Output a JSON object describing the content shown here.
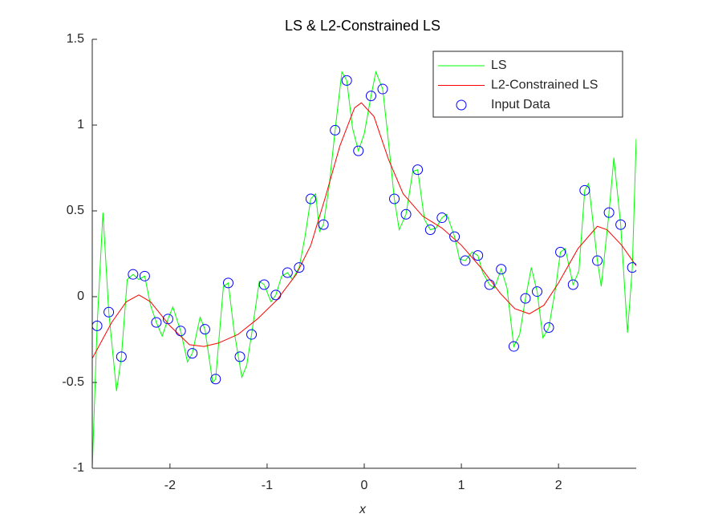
{
  "chart_data": {
    "type": "line",
    "title": "LS & L2-Constrained LS",
    "x_label": "x",
    "xlim": [
      -2.8,
      2.8
    ],
    "ylim": [
      -1,
      1.5
    ],
    "xticks": [
      -2,
      -1,
      0,
      1,
      2
    ],
    "yticks": [
      -1,
      -0.5,
      0,
      0.5,
      1,
      1.5
    ],
    "grid": false,
    "legend_position": "upper right",
    "series": [
      {
        "name": "LS",
        "type": "line",
        "color": "#00ff00",
        "x": [
          -2.8,
          -2.75,
          -2.69,
          -2.63,
          -2.55,
          -2.5,
          -2.44,
          -2.38,
          -2.32,
          -2.26,
          -2.2,
          -2.14,
          -2.08,
          -2.02,
          -1.97,
          -1.89,
          -1.82,
          -1.77,
          -1.69,
          -1.64,
          -1.56,
          -1.53,
          -1.45,
          -1.4,
          -1.34,
          -1.26,
          -1.21,
          -1.16,
          -1.08,
          -1.03,
          -0.96,
          -0.91,
          -0.85,
          -0.79,
          -0.74,
          -0.67,
          -0.61,
          -0.55,
          -0.5,
          -0.46,
          -0.42,
          -0.36,
          -0.3,
          -0.23,
          -0.18,
          -0.12,
          -0.06,
          0,
          0.07,
          0.12,
          0.19,
          0.25,
          0.31,
          0.36,
          0.43,
          0.5,
          0.55,
          0.62,
          0.68,
          0.74,
          0.8,
          0.85,
          0.93,
          0.98,
          1.04,
          1.11,
          1.17,
          1.22,
          1.29,
          1.34,
          1.41,
          1.47,
          1.54,
          1.6,
          1.66,
          1.72,
          1.78,
          1.84,
          1.9,
          1.97,
          2.02,
          2.07,
          2.15,
          2.21,
          2.27,
          2.31,
          2.4,
          2.44,
          2.52,
          2.57,
          2.64,
          2.71,
          2.76,
          2.8
        ],
        "values": [
          -1.0,
          -0.17,
          0.49,
          -0.09,
          -0.55,
          -0.35,
          0.1,
          0.13,
          0.1,
          0.12,
          -0.05,
          -0.15,
          -0.23,
          -0.13,
          -0.06,
          -0.2,
          -0.38,
          -0.33,
          -0.12,
          -0.19,
          -0.5,
          -0.48,
          0.06,
          0.08,
          -0.2,
          -0.47,
          -0.4,
          -0.22,
          0.09,
          0.07,
          -0.03,
          0.01,
          0.12,
          0.14,
          0.1,
          0.17,
          0.35,
          0.57,
          0.6,
          0.38,
          0.42,
          0.65,
          0.97,
          1.31,
          1.26,
          0.98,
          0.85,
          0.95,
          1.17,
          1.31,
          1.21,
          0.9,
          0.57,
          0.39,
          0.48,
          0.73,
          0.74,
          0.45,
          0.39,
          0.4,
          0.46,
          0.48,
          0.35,
          0.22,
          0.21,
          0.26,
          0.24,
          0.14,
          0.07,
          0.05,
          0.16,
          0.05,
          -0.29,
          -0.22,
          -0.01,
          0.17,
          0.03,
          -0.24,
          -0.18,
          0.05,
          0.26,
          0.28,
          0.07,
          0.15,
          0.62,
          0.66,
          0.21,
          0.06,
          0.49,
          0.81,
          0.42,
          -0.21,
          0.17,
          0.92
        ]
      },
      {
        "name": "L2-Constrained LS",
        "type": "line",
        "color": "#ff0000",
        "x": [
          -2.8,
          -2.6,
          -2.45,
          -2.32,
          -2.2,
          -2.0,
          -1.8,
          -1.65,
          -1.5,
          -1.3,
          -1.1,
          -0.9,
          -0.7,
          -0.55,
          -0.4,
          -0.25,
          -0.1,
          -0.03,
          0.1,
          0.25,
          0.4,
          0.6,
          0.8,
          1.0,
          1.2,
          1.4,
          1.55,
          1.7,
          1.85,
          2.0,
          2.2,
          2.4,
          2.5,
          2.65,
          2.8
        ],
        "values": [
          -0.36,
          -0.15,
          -0.03,
          0.01,
          -0.03,
          -0.17,
          -0.28,
          -0.29,
          -0.27,
          -0.22,
          -0.13,
          -0.02,
          0.13,
          0.3,
          0.58,
          0.88,
          1.1,
          1.13,
          1.05,
          0.8,
          0.6,
          0.47,
          0.4,
          0.3,
          0.17,
          0.02,
          -0.07,
          -0.1,
          -0.05,
          0.08,
          0.28,
          0.41,
          0.39,
          0.3,
          0.18
        ]
      },
      {
        "name": "Input Data",
        "type": "scatter",
        "color": "#0000ff",
        "x": [
          -2.75,
          -2.63,
          -2.5,
          -2.38,
          -2.26,
          -2.14,
          -2.02,
          -1.89,
          -1.77,
          -1.64,
          -1.53,
          -1.4,
          -1.28,
          -1.16,
          -1.03,
          -0.91,
          -0.79,
          -0.67,
          -0.55,
          -0.42,
          -0.3,
          -0.18,
          -0.06,
          0.07,
          0.19,
          0.31,
          0.43,
          0.55,
          0.68,
          0.8,
          0.93,
          1.04,
          1.17,
          1.29,
          1.41,
          1.54,
          1.66,
          1.78,
          1.9,
          2.02,
          2.15,
          2.27,
          2.4,
          2.52,
          2.64,
          2.76
        ],
        "values": [
          -0.17,
          -0.09,
          -0.35,
          0.13,
          0.12,
          -0.15,
          -0.13,
          -0.2,
          -0.33,
          -0.19,
          -0.48,
          0.08,
          -0.35,
          -0.22,
          0.07,
          0.01,
          0.14,
          0.17,
          0.57,
          0.42,
          0.97,
          1.26,
          0.85,
          1.17,
          1.21,
          0.57,
          0.48,
          0.74,
          0.39,
          0.46,
          0.35,
          0.21,
          0.24,
          0.07,
          0.16,
          -0.29,
          -0.01,
          0.03,
          -0.18,
          0.26,
          0.07,
          0.62,
          0.21,
          0.49,
          0.42,
          0.17
        ]
      }
    ]
  }
}
